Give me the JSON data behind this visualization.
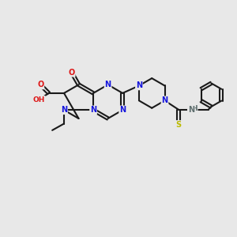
{
  "bg_color": "#e8e8e8",
  "bond_color": "#1a1a1a",
  "atom_colors": {
    "N": "#1515dd",
    "O": "#dd1515",
    "S": "#bbbb00",
    "H": "#607070",
    "C": "#1a1a1a"
  },
  "lw": 1.5,
  "fs": 7.0,
  "dbl_off": 0.06
}
